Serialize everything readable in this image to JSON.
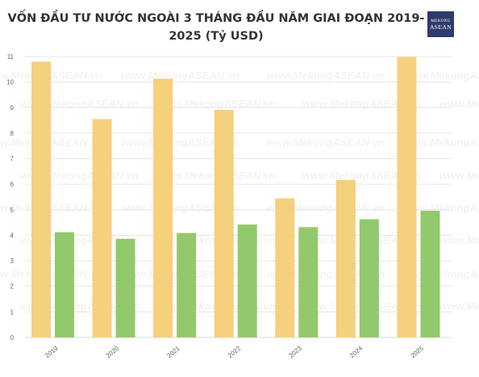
{
  "title": "VỐN ĐẦU TƯ NƯỚC NGOÀI 3 THÁNG ĐẦU NĂM GIAI ĐOẠN 2019-2025 (Tỷ USD)",
  "logo": {
    "line1": "MEKONG",
    "line2": "ASEAN"
  },
  "watermark": "www.MekongASEAN.vn",
  "colors": {
    "series1": "#f5d07d",
    "series2": "#93c96d",
    "grid": "#e6e6e6",
    "axis": "#d9d9d9"
  },
  "chart_data": {
    "type": "bar",
    "title": "VỐN ĐẦU TƯ NƯỚC NGOÀI 3 THÁNG ĐẦU NĂM GIAI ĐOẠN 2019-2025 (Tỷ USD)",
    "categories": [
      "2019",
      "2020",
      "2021",
      "2022",
      "2023",
      "2024",
      "2025"
    ],
    "series": [
      {
        "values": [
          10.8,
          8.55,
          10.13,
          8.91,
          5.45,
          6.17,
          10.98
        ]
      },
      {
        "values": [
          4.12,
          3.86,
          4.09,
          4.42,
          4.32,
          4.63,
          4.96
        ]
      }
    ],
    "yticks": [
      0,
      1,
      2,
      3,
      4,
      5,
      6,
      7,
      8,
      9,
      10,
      11
    ],
    "ylim": [
      0,
      11
    ],
    "xlabel": "",
    "ylabel": "",
    "grid": true,
    "legend": "none"
  }
}
